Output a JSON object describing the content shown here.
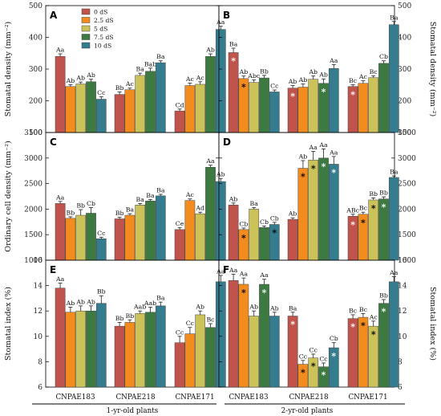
{
  "colors": {
    "0 dS": "#c0534b",
    "2.5 dS": "#f28c1e",
    "5 dS": "#ccc25a",
    "7.5 dS": "#3c7a42",
    "10 dS": "#347c8e"
  },
  "legend": [
    "0 dS",
    "2.5 dS",
    "5 dS",
    "7.5 dS",
    "10 dS"
  ],
  "categories": [
    "CNPAE183",
    "CNPAE218",
    "CNPAE171"
  ],
  "groups": [
    "1-yr-old plants",
    "2-yr-old plants"
  ],
  "chart_data": [
    {
      "panel": "A",
      "type": "bar",
      "ylabel": "Stomatal density (mm⁻²)",
      "ylim": [
        100,
        500
      ],
      "yticks": [
        100,
        200,
        300,
        400,
        500
      ],
      "axis_side": "left",
      "values": [
        [
          340,
          245,
          253,
          260,
          205
        ],
        [
          220,
          235,
          280,
          293,
          320
        ],
        [
          168,
          248,
          252,
          340,
          425
        ]
      ],
      "errors": [
        [
          8,
          6,
          6,
          8,
          8
        ],
        [
          8,
          5,
          7,
          10,
          6
        ],
        [
          6,
          8,
          8,
          8,
          10
        ]
      ],
      "labels": [
        [
          "Aa",
          "Ab",
          "Ab",
          "Ab",
          "Cc"
        ],
        [
          "Bb",
          "Ac",
          "Ba",
          "Bab",
          "Ba"
        ],
        [
          "Cd",
          "Ac",
          "Ac",
          "Ab",
          "Aa"
        ]
      ],
      "stars": []
    },
    {
      "panel": "B",
      "type": "bar",
      "ylabel": "Stomatal density (mm⁻²)",
      "ylim": [
        100,
        500
      ],
      "yticks": [
        100,
        200,
        300,
        400,
        500
      ],
      "axis_side": "right",
      "values": [
        [
          352,
          270,
          258,
          272,
          228
        ],
        [
          240,
          243,
          268,
          255,
          302
        ],
        [
          245,
          255,
          273,
          318,
          440
        ]
      ],
      "errors": [
        [
          14,
          8,
          8,
          8,
          6
        ],
        [
          8,
          10,
          10,
          14,
          12
        ],
        [
          6,
          8,
          6,
          8,
          10
        ]
      ],
      "labels": [
        [
          "Ba",
          "Ab",
          "Abc",
          "Bb",
          "Cc"
        ],
        [
          "Ab",
          "Ab",
          "Ab",
          "Ab",
          "Aa"
        ],
        [
          "Bc",
          "Ac",
          "Bc",
          "Cb",
          "Ba"
        ]
      ],
      "stars": [
        [
          0,
          0,
          "white"
        ],
        [
          0,
          1,
          "black"
        ],
        [
          1,
          0,
          "white"
        ],
        [
          1,
          3,
          "white"
        ],
        [
          2,
          0,
          "white"
        ]
      ]
    },
    {
      "panel": "C",
      "type": "bar",
      "ylabel": "Ordinary cell density (mm⁻²)",
      "ylim": [
        1000,
        3500
      ],
      "yticks": [
        1000,
        1500,
        2000,
        2500,
        3000,
        3500
      ],
      "axis_side": "left",
      "values": [
        [
          2110,
          1820,
          1880,
          1920,
          1420
        ],
        [
          1810,
          1880,
          2080,
          2160,
          2260
        ],
        [
          1600,
          2170,
          1910,
          2820,
          2540
        ]
      ],
      "errors": [
        [
          40,
          30,
          110,
          110,
          30
        ],
        [
          30,
          30,
          30,
          30,
          30
        ],
        [
          40,
          30,
          30,
          40,
          60
        ]
      ],
      "labels": [
        [
          "Aa",
          "Bb",
          "Bb",
          "Cb",
          "Cc"
        ],
        [
          "Bb",
          "Ba",
          "Ba",
          "Ba",
          "Ba"
        ],
        [
          "Ce",
          "Ac",
          "Ad",
          "Aa",
          "Ab"
        ]
      ],
      "stars": []
    },
    {
      "panel": "D",
      "type": "bar",
      "ylabel": "",
      "ylim": [
        1000,
        3500
      ],
      "yticks": [
        1000,
        1500,
        2000,
        2500,
        3000,
        3500
      ],
      "axis_side": "right",
      "values": [
        [
          2080,
          1600,
          2000,
          1640,
          1700
        ],
        [
          1800,
          2800,
          2960,
          3000,
          2880
        ],
        [
          1860,
          1900,
          2180,
          2200,
          2620
        ]
      ],
      "errors": [
        [
          40,
          30,
          30,
          30,
          40
        ],
        [
          30,
          150,
          170,
          180,
          150
        ],
        [
          40,
          40,
          40,
          40,
          30
        ]
      ],
      "labels": [
        [
          "Ab",
          "Cb",
          "Ba",
          "Cb",
          "Cb"
        ],
        [
          "Ab",
          "Ab",
          "Aa",
          "Aa",
          "Aa"
        ],
        [
          "ABc",
          "Bc",
          "Bb",
          "Bb",
          "Ba"
        ]
      ],
      "stars": [
        [
          0,
          1,
          "black"
        ],
        [
          0,
          4,
          "black"
        ],
        [
          1,
          1,
          "black"
        ],
        [
          1,
          2,
          "black"
        ],
        [
          1,
          3,
          "white"
        ],
        [
          1,
          4,
          "white"
        ],
        [
          2,
          0,
          "white"
        ],
        [
          2,
          1,
          "black"
        ],
        [
          2,
          2,
          "black"
        ],
        [
          2,
          3,
          "white"
        ]
      ]
    },
    {
      "panel": "E",
      "type": "bar",
      "ylabel": "Stomatal index (%)",
      "ylim": [
        6,
        16
      ],
      "yticks": [
        6,
        8,
        10,
        12,
        14,
        16
      ],
      "axis_side": "left",
      "values": [
        [
          13.8,
          11.9,
          12.0,
          12.0,
          12.6
        ],
        [
          10.8,
          11.1,
          11.8,
          11.9,
          12.4
        ],
        [
          9.5,
          10.2,
          11.7,
          10.7,
          14.3
        ]
      ],
      "errors": [
        [
          0.4,
          0.4,
          0.4,
          0.4,
          0.6
        ],
        [
          0.3,
          0.2,
          0.2,
          0.4,
          0.3
        ],
        [
          0.5,
          0.5,
          0.3,
          0.3,
          0.5
        ]
      ],
      "labels": [
        [
          "Aa",
          "Ab",
          "Ab",
          "Ab",
          "Bb"
        ],
        [
          "Bb",
          "Bb",
          "Aab",
          "Aab",
          "Ba"
        ],
        [
          "Cc",
          "Cc",
          "Ab",
          "Bc",
          "Aa"
        ]
      ],
      "stars": []
    },
    {
      "panel": "F",
      "type": "bar",
      "ylabel": "Stomatal index (%)",
      "ylim": [
        6,
        16
      ],
      "yticks": [
        6,
        8,
        10,
        12,
        14,
        16
      ],
      "axis_side": "right",
      "values": [
        [
          14.4,
          14.1,
          11.6,
          14.1,
          11.6
        ],
        [
          11.6,
          7.8,
          8.3,
          7.6,
          9.1
        ],
        [
          11.4,
          11.5,
          10.8,
          12.6,
          14.3
        ]
      ],
      "errors": [
        [
          0.5,
          0.5,
          0.4,
          0.4,
          0.3
        ],
        [
          0.3,
          0.3,
          0.3,
          0.3,
          0.4
        ],
        [
          0.3,
          0.3,
          0.4,
          0.3,
          0.4
        ]
      ],
      "labels": [
        [
          "Aa",
          "Aa",
          "Ab",
          "Aa",
          "Ab"
        ],
        [
          "Ba",
          "Cc",
          "Cc",
          "Cc",
          "Cb"
        ],
        [
          "Bc",
          "Bc",
          "Ac",
          "Bb",
          "Aa"
        ]
      ],
      "stars": [
        [
          0,
          1,
          "black"
        ],
        [
          0,
          3,
          "white"
        ],
        [
          1,
          0,
          "white"
        ],
        [
          1,
          1,
          "black"
        ],
        [
          1,
          2,
          "black"
        ],
        [
          1,
          3,
          "white"
        ],
        [
          1,
          4,
          "white"
        ],
        [
          2,
          0,
          "white"
        ],
        [
          2,
          1,
          "black"
        ],
        [
          2,
          2,
          "black"
        ],
        [
          2,
          3,
          "white"
        ]
      ]
    }
  ]
}
